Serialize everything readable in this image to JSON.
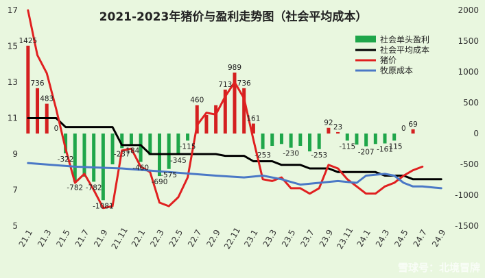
{
  "chart_data": {
    "type": "bar+line",
    "title": "2021-2023年猪价与盈利走势图（社会平均成本）",
    "xlabel": "",
    "ylabel_left": "",
    "ylabel_right": "",
    "ylim_left": [
      5,
      17
    ],
    "yticks_left": [
      5,
      7,
      9,
      11,
      13,
      15,
      17
    ],
    "ylim_right": [
      -1500,
      2000
    ],
    "yticks_right": [
      -1500,
      -1000,
      -500,
      0,
      500,
      1000,
      1500,
      2000
    ],
    "grid": false,
    "legend_position": "top-right",
    "x_tick_labels": [
      "21.1",
      "21.3",
      "21.5",
      "21.7",
      "21.9",
      "21.11",
      "22.1",
      "22.3",
      "22.5",
      "22.7",
      "22.9",
      "22.11",
      "23.1",
      "23.3",
      "23.5",
      "23.7",
      "23.9",
      "23.11",
      "24.1",
      "24.3",
      "24.5",
      "24.7",
      "24.9"
    ],
    "bar_color": "#1fa64a",
    "bar_color_positive": "#d42020",
    "series": [
      {
        "name": "社会单头盈利",
        "axis": "right",
        "kind": "bar",
        "color": "#1fa64a",
        "points": [
          {
            "x": 1,
            "y": 1425
          },
          {
            "x": 3,
            "y": 736
          },
          {
            "x": 5,
            "y": 483
          },
          {
            "x": 7,
            "y": 0
          },
          {
            "x": 9,
            "y": -322
          },
          {
            "x": 11,
            "y": -782
          },
          {
            "x": 13,
            "y": -700
          },
          {
            "x": 15,
            "y": -782
          },
          {
            "x": 17,
            "y": -1081
          },
          {
            "x": 19,
            "y": -500
          },
          {
            "x": 21,
            "y": -237
          },
          {
            "x": 23,
            "y": -184
          },
          {
            "x": 25,
            "y": -460
          },
          {
            "x": 27,
            "y": -350
          },
          {
            "x": 29,
            "y": -690
          },
          {
            "x": 31,
            "y": -575
          },
          {
            "x": 33,
            "y": -345
          },
          {
            "x": 35,
            "y": -115
          },
          {
            "x": 37,
            "y": 460
          },
          {
            "x": 39,
            "y": 300
          },
          {
            "x": 41,
            "y": 460
          },
          {
            "x": 43,
            "y": 713
          },
          {
            "x": 45,
            "y": 989
          },
          {
            "x": 47,
            "y": 736
          },
          {
            "x": 49,
            "y": 161
          },
          {
            "x": 51,
            "y": -253
          },
          {
            "x": 53,
            "y": -200
          },
          {
            "x": 55,
            "y": -170
          },
          {
            "x": 57,
            "y": -230
          },
          {
            "x": 59,
            "y": -200
          },
          {
            "x": 61,
            "y": -290
          },
          {
            "x": 63,
            "y": -253
          },
          {
            "x": 65,
            "y": 92
          },
          {
            "x": 67,
            "y": 23
          },
          {
            "x": 69,
            "y": -115
          },
          {
            "x": 71,
            "y": -180
          },
          {
            "x": 73,
            "y": -207
          },
          {
            "x": 75,
            "y": -170
          },
          {
            "x": 77,
            "y": -161
          },
          {
            "x": 79,
            "y": -115
          },
          {
            "x": 81,
            "y": 0
          },
          {
            "x": 83,
            "y": 69
          }
        ],
        "data_labels": [
          {
            "x": 1,
            "y": 1425,
            "text": "1425"
          },
          {
            "x": 3,
            "y": 736,
            "text": "736"
          },
          {
            "x": 5,
            "y": 483,
            "text": "483"
          },
          {
            "x": 7,
            "y": 0,
            "text": "0"
          },
          {
            "x": 9,
            "y": -322,
            "text": "-322"
          },
          {
            "x": 11,
            "y": -782,
            "text": "-782"
          },
          {
            "x": 15,
            "y": -782,
            "text": "-782"
          },
          {
            "x": 17,
            "y": -1081,
            "text": "-1081"
          },
          {
            "x": 21,
            "y": -237,
            "text": "-237"
          },
          {
            "x": 23,
            "y": -184,
            "text": "-184"
          },
          {
            "x": 25,
            "y": -460,
            "text": "-460"
          },
          {
            "x": 29,
            "y": -690,
            "text": "-690"
          },
          {
            "x": 31,
            "y": -575,
            "text": "-575"
          },
          {
            "x": 33,
            "y": -345,
            "text": "-345"
          },
          {
            "x": 35,
            "y": -115,
            "text": "-115"
          },
          {
            "x": 37,
            "y": 460,
            "text": "460"
          },
          {
            "x": 43,
            "y": 713,
            "text": "713"
          },
          {
            "x": 45,
            "y": 989,
            "text": "989"
          },
          {
            "x": 47,
            "y": 736,
            "text": "736"
          },
          {
            "x": 49,
            "y": 161,
            "text": "161"
          },
          {
            "x": 51,
            "y": -253,
            "text": "-253"
          },
          {
            "x": 57,
            "y": -230,
            "text": "-230"
          },
          {
            "x": 63,
            "y": -253,
            "text": "-253"
          },
          {
            "x": 65,
            "y": 92,
            "text": "92"
          },
          {
            "x": 67,
            "y": 23,
            "text": "23"
          },
          {
            "x": 69,
            "y": -115,
            "text": "-115"
          },
          {
            "x": 73,
            "y": -207,
            "text": "-207"
          },
          {
            "x": 77,
            "y": -161,
            "text": "-161"
          },
          {
            "x": 79,
            "y": -115,
            "text": "-115"
          },
          {
            "x": 81,
            "y": 0,
            "text": "0"
          },
          {
            "x": 83,
            "y": 69,
            "text": "69"
          }
        ]
      },
      {
        "name": "社会平均成本",
        "axis": "left",
        "kind": "line",
        "color": "#000000",
        "points": [
          {
            "x": 1,
            "y": 11
          },
          {
            "x": 7,
            "y": 11
          },
          {
            "x": 9,
            "y": 10.5
          },
          {
            "x": 19,
            "y": 10.5
          },
          {
            "x": 21,
            "y": 9.5
          },
          {
            "x": 25,
            "y": 9.5
          },
          {
            "x": 27,
            "y": 9
          },
          {
            "x": 41,
            "y": 9
          },
          {
            "x": 43,
            "y": 8.9
          },
          {
            "x": 47,
            "y": 8.9
          },
          {
            "x": 49,
            "y": 8.6
          },
          {
            "x": 53,
            "y": 8.6
          },
          {
            "x": 55,
            "y": 8.4
          },
          {
            "x": 59,
            "y": 8.4
          },
          {
            "x": 61,
            "y": 8.2
          },
          {
            "x": 65,
            "y": 8.2
          },
          {
            "x": 67,
            "y": 8.0
          },
          {
            "x": 75,
            "y": 8.0
          },
          {
            "x": 77,
            "y": 7.8
          },
          {
            "x": 81,
            "y": 7.8
          },
          {
            "x": 83,
            "y": 7.6
          },
          {
            "x": 89,
            "y": 7.6
          }
        ]
      },
      {
        "name": "猪价",
        "axis": "left",
        "kind": "line",
        "color": "#e02020",
        "points": [
          {
            "x": 1,
            "y": 17.0
          },
          {
            "x": 3,
            "y": 14.5
          },
          {
            "x": 5,
            "y": 13.5
          },
          {
            "x": 7,
            "y": 11.5
          },
          {
            "x": 9,
            "y": 9.3
          },
          {
            "x": 11,
            "y": 7.4
          },
          {
            "x": 13,
            "y": 7.9
          },
          {
            "x": 15,
            "y": 7.0
          },
          {
            "x": 17,
            "y": 6.0
          },
          {
            "x": 19,
            "y": 6.1
          },
          {
            "x": 21,
            "y": 9.2
          },
          {
            "x": 23,
            "y": 9.3
          },
          {
            "x": 25,
            "y": 8.3
          },
          {
            "x": 27,
            "y": 8.0
          },
          {
            "x": 29,
            "y": 6.3
          },
          {
            "x": 31,
            "y": 6.1
          },
          {
            "x": 33,
            "y": 6.6
          },
          {
            "x": 35,
            "y": 7.7
          },
          {
            "x": 37,
            "y": 10.6
          },
          {
            "x": 39,
            "y": 11.3
          },
          {
            "x": 41,
            "y": 11.2
          },
          {
            "x": 43,
            "y": 12.2
          },
          {
            "x": 45,
            "y": 13.0
          },
          {
            "x": 47,
            "y": 12.1
          },
          {
            "x": 49,
            "y": 9.8
          },
          {
            "x": 51,
            "y": 7.6
          },
          {
            "x": 53,
            "y": 7.5
          },
          {
            "x": 55,
            "y": 7.7
          },
          {
            "x": 57,
            "y": 7.1
          },
          {
            "x": 59,
            "y": 7.1
          },
          {
            "x": 61,
            "y": 6.8
          },
          {
            "x": 63,
            "y": 7.1
          },
          {
            "x": 65,
            "y": 8.4
          },
          {
            "x": 67,
            "y": 8.2
          },
          {
            "x": 69,
            "y": 7.6
          },
          {
            "x": 71,
            "y": 7.2
          },
          {
            "x": 73,
            "y": 6.8
          },
          {
            "x": 75,
            "y": 6.8
          },
          {
            "x": 77,
            "y": 7.2
          },
          {
            "x": 79,
            "y": 7.4
          },
          {
            "x": 81,
            "y": 7.8
          },
          {
            "x": 83,
            "y": 8.1
          },
          {
            "x": 85,
            "y": 8.3
          }
        ]
      },
      {
        "name": "牧原成本",
        "axis": "left",
        "kind": "line",
        "color": "#4a78c6",
        "points": [
          {
            "x": 1,
            "y": 8.5
          },
          {
            "x": 11,
            "y": 8.3
          },
          {
            "x": 21,
            "y": 8.2
          },
          {
            "x": 31,
            "y": 8.0
          },
          {
            "x": 41,
            "y": 7.8
          },
          {
            "x": 47,
            "y": 7.7
          },
          {
            "x": 51,
            "y": 7.8
          },
          {
            "x": 55,
            "y": 7.6
          },
          {
            "x": 59,
            "y": 7.3
          },
          {
            "x": 63,
            "y": 7.4
          },
          {
            "x": 67,
            "y": 7.5
          },
          {
            "x": 71,
            "y": 7.4
          },
          {
            "x": 73,
            "y": 7.8
          },
          {
            "x": 77,
            "y": 7.9
          },
          {
            "x": 79,
            "y": 7.8
          },
          {
            "x": 81,
            "y": 7.4
          },
          {
            "x": 83,
            "y": 7.2
          },
          {
            "x": 85,
            "y": 7.2
          },
          {
            "x": 89,
            "y": 7.1
          }
        ]
      }
    ],
    "annotations": [
      "雪球号：北境冒牌"
    ]
  }
}
